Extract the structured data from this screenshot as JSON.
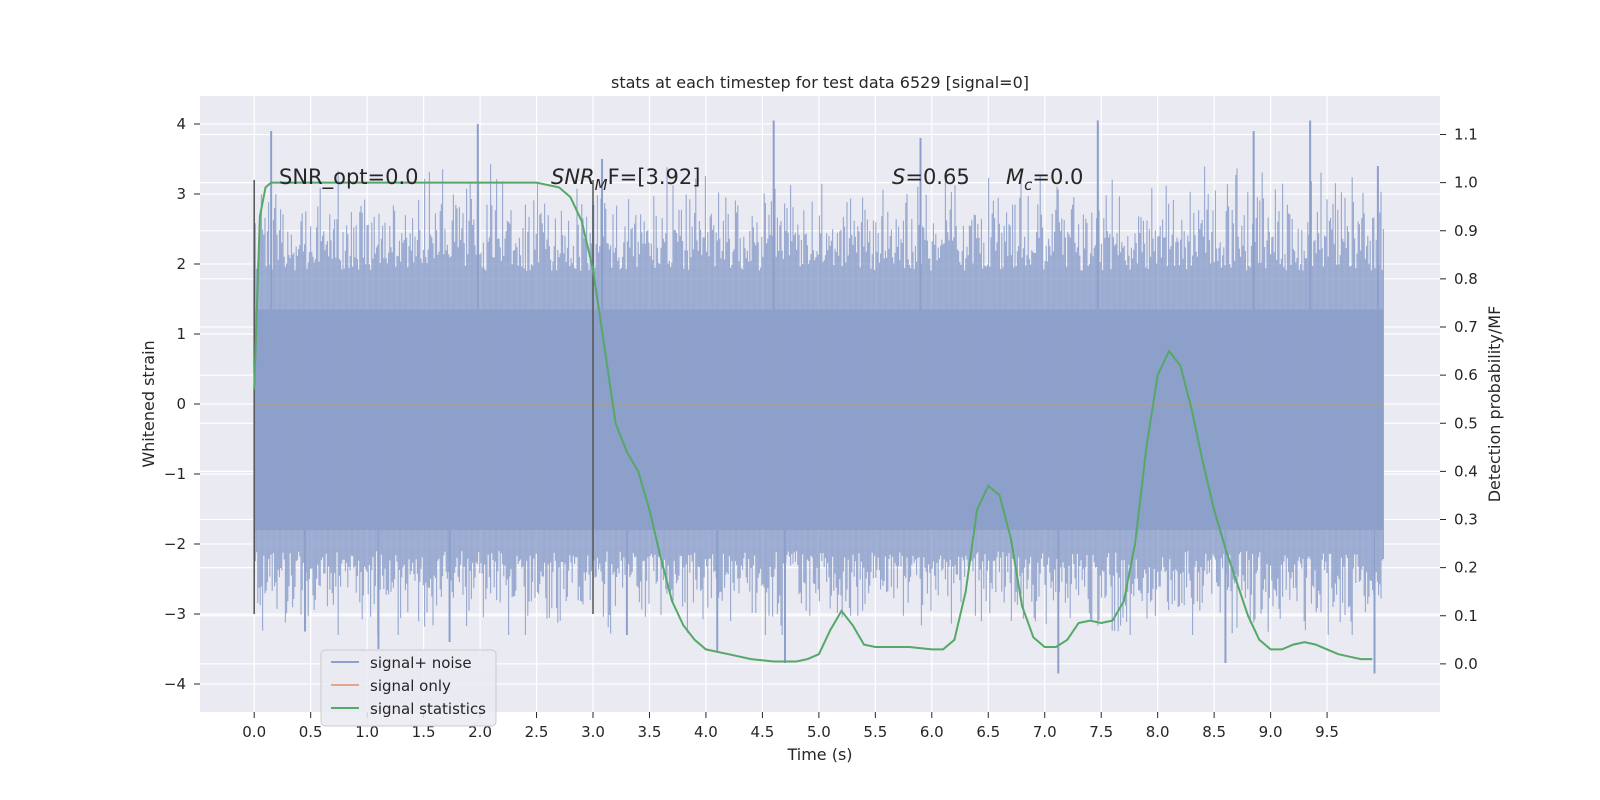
{
  "chart_data": {
    "type": "line",
    "title": "stats at each timestep for test data 6529 [signal=0]",
    "xlabel": "Time (s)",
    "ylabel": "Whitened strain",
    "y2label": "Detection probability/MF",
    "xlim": [
      -0.48,
      10.5
    ],
    "ylim": [
      -4.4,
      4.4
    ],
    "y2lim": [
      -0.1,
      1.18
    ],
    "x_ticks": [
      "0.0",
      "0.5",
      "1.0",
      "1.5",
      "2.0",
      "2.5",
      "3.0",
      "3.5",
      "4.0",
      "4.5",
      "5.0",
      "5.5",
      "6.0",
      "6.5",
      "7.0",
      "7.5",
      "8.0",
      "8.5",
      "9.0",
      "9.5"
    ],
    "y_ticks": [
      "4",
      "3",
      "2",
      "1",
      "0",
      "−1",
      "−2",
      "−3",
      "−4"
    ],
    "y2_ticks": [
      "1.1",
      "1.0",
      "0.9",
      "0.8",
      "0.7",
      "0.6",
      "0.5",
      "0.4",
      "0.3",
      "0.2",
      "0.1",
      "0.0"
    ],
    "grid": true,
    "legend_placement": "lower-left",
    "annotations": {
      "snr_opt": "SNR_opt=0.0",
      "snr_mf_sym": "SNR",
      "snr_mf_sub": "M",
      "snr_mf_rest": "F=[3.92]",
      "s_sym": "S",
      "s_rest": "=0.65",
      "mc_sym": "M",
      "mc_sub": "c",
      "mc_rest": "=0.0"
    },
    "vlines": [
      {
        "x": 0.0,
        "ymin": -3.0,
        "ymax": 3.2
      },
      {
        "x": 3.0,
        "ymin": -3.0,
        "ymax": 3.2
      }
    ],
    "series": [
      {
        "name": "signal+ noise",
        "color": "#8da0cb",
        "kind": "noise",
        "x_range": [
          0.0,
          10.0
        ],
        "band_core": [
          -1.8,
          1.35
        ],
        "spike_peaks": [
          {
            "x": 0.15,
            "y": 3.9
          },
          {
            "x": 1.98,
            "y": 4.0
          },
          {
            "x": 4.6,
            "y": 4.05
          },
          {
            "x": 7.47,
            "y": 4.05
          },
          {
            "x": 9.35,
            "y": 4.05
          },
          {
            "x": 8.85,
            "y": 3.9
          },
          {
            "x": 3.08,
            "y": 3.5
          },
          {
            "x": 5.9,
            "y": 3.8
          },
          {
            "x": 9.95,
            "y": 3.4
          },
          {
            "x": 1.1,
            "y": -3.5
          },
          {
            "x": 4.1,
            "y": -3.55
          },
          {
            "x": 4.7,
            "y": -3.7
          },
          {
            "x": 7.12,
            "y": -3.85
          },
          {
            "x": 8.6,
            "y": -3.7
          },
          {
            "x": 9.92,
            "y": -3.85
          },
          {
            "x": 3.3,
            "y": -3.3
          },
          {
            "x": 0.45,
            "y": -3.25
          },
          {
            "x": 1.73,
            "y": -3.4
          }
        ]
      },
      {
        "name": "signal only",
        "color": "#e5a58a",
        "x": [
          0.0,
          10.0
        ],
        "y": [
          0.0,
          0.0
        ]
      },
      {
        "name": "signal statistics",
        "color": "#55a868",
        "axis": "right",
        "x": [
          0.0,
          0.05,
          0.1,
          0.15,
          0.2,
          0.3,
          0.5,
          1.0,
          1.5,
          2.0,
          2.5,
          2.7,
          2.8,
          2.9,
          3.0,
          3.1,
          3.2,
          3.3,
          3.4,
          3.5,
          3.6,
          3.7,
          3.8,
          3.9,
          4.0,
          4.2,
          4.4,
          4.6,
          4.8,
          4.9,
          5.0,
          5.1,
          5.2,
          5.3,
          5.4,
          5.5,
          5.6,
          5.8,
          6.0,
          6.1,
          6.2,
          6.3,
          6.4,
          6.5,
          6.6,
          6.7,
          6.8,
          6.9,
          7.0,
          7.1,
          7.2,
          7.3,
          7.4,
          7.5,
          7.6,
          7.7,
          7.8,
          7.9,
          8.0,
          8.1,
          8.2,
          8.3,
          8.4,
          8.5,
          8.6,
          8.7,
          8.8,
          8.9,
          9.0,
          9.1,
          9.2,
          9.3,
          9.4,
          9.5,
          9.6,
          9.7,
          9.8,
          9.9
        ],
        "y": [
          0.57,
          0.93,
          0.99,
          1.0,
          1.0,
          1.0,
          1.0,
          1.0,
          1.0,
          1.0,
          1.0,
          0.99,
          0.97,
          0.92,
          0.82,
          0.66,
          0.5,
          0.44,
          0.4,
          0.32,
          0.22,
          0.13,
          0.08,
          0.05,
          0.03,
          0.02,
          0.01,
          0.005,
          0.005,
          0.01,
          0.02,
          0.07,
          0.11,
          0.08,
          0.04,
          0.035,
          0.035,
          0.035,
          0.03,
          0.03,
          0.05,
          0.15,
          0.32,
          0.37,
          0.35,
          0.26,
          0.12,
          0.055,
          0.035,
          0.035,
          0.05,
          0.085,
          0.09,
          0.085,
          0.09,
          0.13,
          0.25,
          0.45,
          0.6,
          0.65,
          0.62,
          0.53,
          0.42,
          0.32,
          0.24,
          0.17,
          0.1,
          0.05,
          0.03,
          0.03,
          0.04,
          0.045,
          0.04,
          0.03,
          0.02,
          0.015,
          0.01,
          0.01
        ]
      }
    ]
  }
}
